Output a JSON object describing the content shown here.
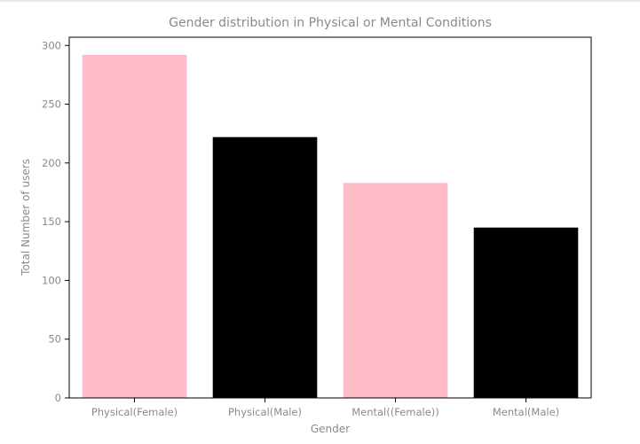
{
  "chart_data": {
    "type": "bar",
    "title": "Gender distribution in Physical or Mental Conditions",
    "xlabel": "Gender",
    "ylabel": "Total Number of users",
    "categories": [
      "Physical(Female)",
      "Physical(Male)",
      "Mental((Female))",
      "Mental(Male)"
    ],
    "values": [
      292,
      222,
      183,
      145
    ],
    "colors": [
      "#ffbbc8",
      "#000000",
      "#ffbbc8",
      "#000000"
    ],
    "ylim": [
      0,
      307
    ],
    "yticks": [
      0,
      50,
      100,
      150,
      200,
      250,
      300
    ],
    "grid": false,
    "legend": "none"
  }
}
